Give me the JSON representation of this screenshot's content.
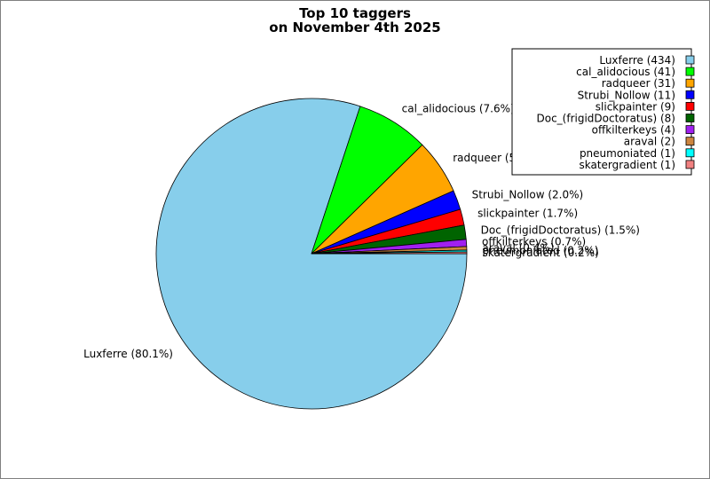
{
  "chart_data": {
    "type": "pie",
    "title": [
      "Top 10 taggers",
      "on November 4th 2025"
    ],
    "slices": [
      {
        "name": "Luxferre",
        "value": 434,
        "percent_label": "80.1%",
        "color": "#87CEEB"
      },
      {
        "name": "cal_alidocious",
        "value": 41,
        "percent_label": "7.6%",
        "color": "#00FF00"
      },
      {
        "name": "radqueer",
        "value": 31,
        "percent_label": "5.7%",
        "color": "#FFA500"
      },
      {
        "name": "Strubi_Nollow",
        "value": 11,
        "percent_label": "2.0%",
        "color": "#0000FF"
      },
      {
        "name": "slickpainter",
        "value": 9,
        "percent_label": "1.7%",
        "color": "#FF0000"
      },
      {
        "name": "Doc_(frigidDoctoratus)",
        "value": 8,
        "percent_label": "1.5%",
        "color": "#006400"
      },
      {
        "name": "offkilterkeys",
        "value": 4,
        "percent_label": "0.7%",
        "color": "#A020F0"
      },
      {
        "name": "araval",
        "value": 2,
        "percent_label": "0.4%",
        "color": "#CD853F"
      },
      {
        "name": "pneumoniated",
        "value": 1,
        "percent_label": "0.2%",
        "color": "#00FFFF"
      },
      {
        "name": "skatergradient",
        "value": 1,
        "percent_label": "0.2%",
        "color": "#F08080"
      }
    ],
    "legend": {
      "placement": "top-right",
      "entries": [
        "Luxferre (434)",
        "cal_alidocious (41)",
        "radqueer (31)",
        "Strubi_Nollow (11)",
        "slickpainter (9)",
        "Doc_(frigidDoctoratus) (8)",
        "offkilterkeys (4)",
        "araval (2)",
        "pneumoniated (1)",
        "skatergradient (1)"
      ]
    }
  }
}
